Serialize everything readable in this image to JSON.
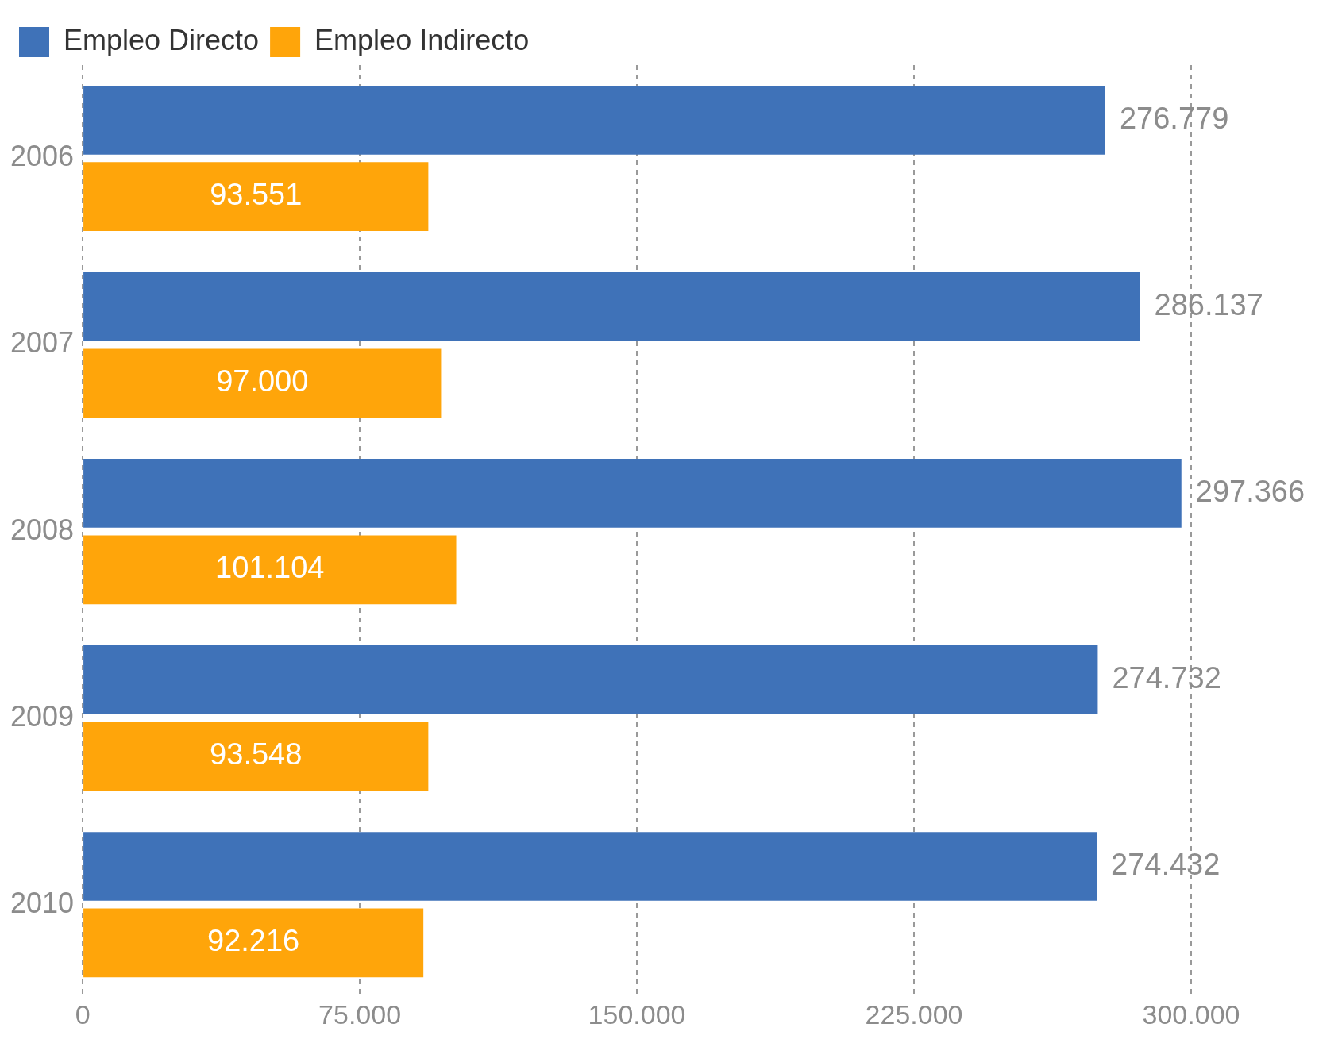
{
  "chart_data": {
    "type": "bar",
    "orientation": "horizontal",
    "legend": "top",
    "categories": [
      "2006",
      "2007",
      "2008",
      "2009",
      "2010"
    ],
    "series": [
      {
        "name": "Empleo Directo",
        "color": "#3f72b8",
        "values": [
          276779,
          286137,
          297366,
          274732,
          274432
        ],
        "value_labels": [
          "276.779",
          "286.137",
          "297.366",
          "274.732",
          "274.432"
        ]
      },
      {
        "name": "Empleo Indirecto",
        "color": "#ffa50a",
        "values": [
          93551,
          97000,
          101104,
          93548,
          92216
        ],
        "value_labels": [
          "93.551",
          "97.000",
          "101.104",
          "93.548",
          "92.216"
        ]
      }
    ],
    "xlim": [
      0,
      300000
    ],
    "xticks": [
      {
        "value": 0,
        "label": "0"
      },
      {
        "value": 75000,
        "label": "75.000"
      },
      {
        "value": 150000,
        "label": "150.000"
      },
      {
        "value": 225000,
        "label": "225.000"
      },
      {
        "value": 300000,
        "label": "300.000"
      }
    ],
    "grid": "x"
  }
}
